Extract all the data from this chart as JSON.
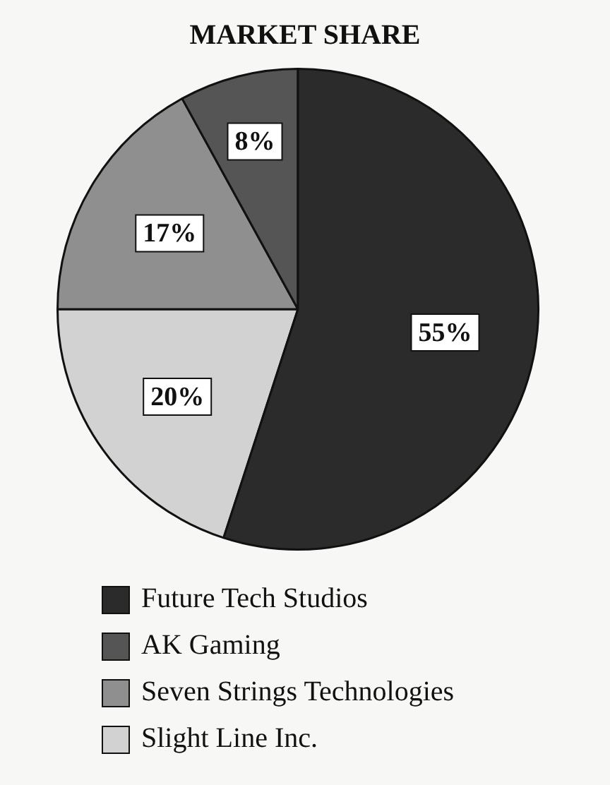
{
  "chart_data": {
    "type": "pie",
    "title": "MARKET SHARE",
    "categories": [
      "Future Tech Studios",
      "AK Gaming",
      "Seven Strings Technologies",
      "Slight Line Inc."
    ],
    "values": [
      55,
      8,
      17,
      20
    ],
    "value_labels": [
      "55%",
      "8%",
      "17%",
      "20%"
    ],
    "colors": [
      "#2b2b2b",
      "#555555",
      "#8f8f8f",
      "#d2d2d2"
    ],
    "legend": "bottom"
  }
}
